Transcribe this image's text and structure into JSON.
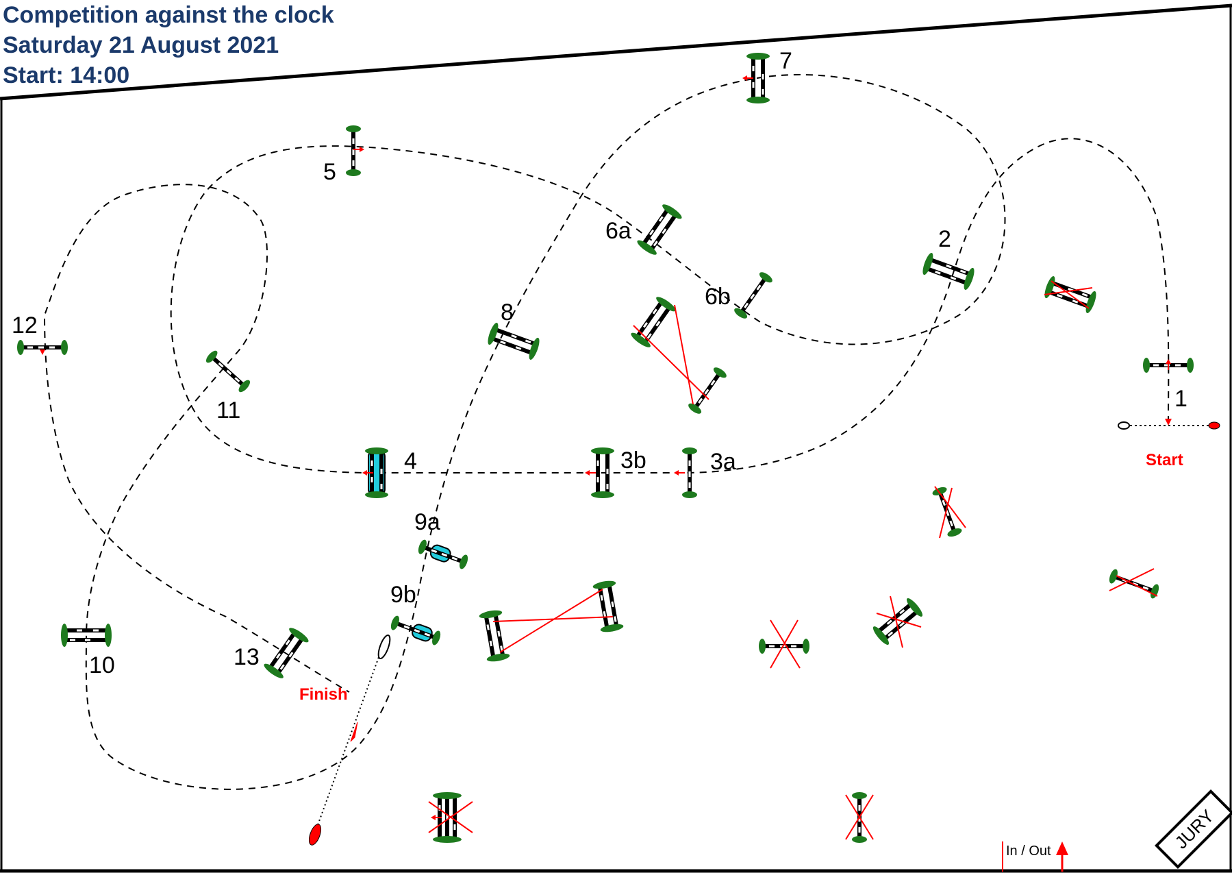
{
  "header": {
    "line1": "Competition against the clock",
    "line2": "Saturday 21 August 2021",
    "line3": "Start: 14:00"
  },
  "labels": {
    "start": "Start",
    "finish": "Finish",
    "in_out": "In / Out",
    "jury": "JURY"
  },
  "obstacles": {
    "o1": "1",
    "o2": "2",
    "o3a": "3a",
    "o3b": "3b",
    "o4": "4",
    "o5": "5",
    "o6a": "6a",
    "o6b": "6b",
    "o7": "7",
    "o8": "8",
    "o9a": "9a",
    "o9b": "9b",
    "o10": "10",
    "o11": "11",
    "o12": "12",
    "o13": "13"
  },
  "colors": {
    "header": "#1b3a6b",
    "bush": "#1e7a1e",
    "arrow": "#ff0000",
    "water": "#22ccdd"
  }
}
